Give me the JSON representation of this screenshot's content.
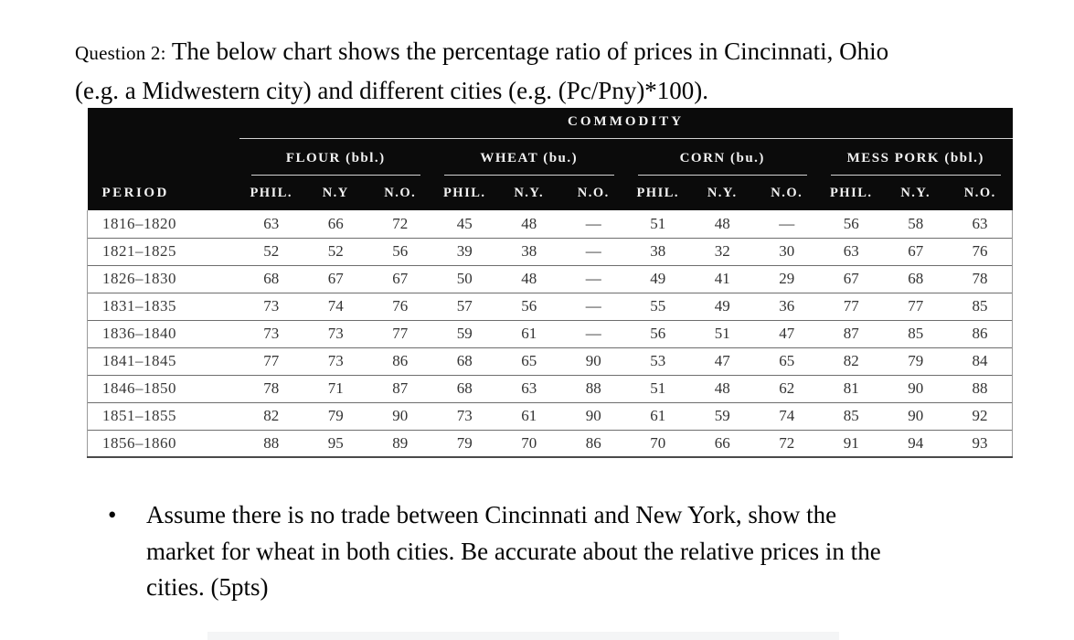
{
  "question": {
    "label": "Question 2:",
    "line1": "The below chart shows the percentage ratio of prices in Cincinnati, Ohio",
    "line2": "(e.g. a Midwestern city) and different cities (e.g. (Pc/Pny)*100)."
  },
  "table": {
    "commodity_header": "COMMODITY",
    "period_header": "PERIOD",
    "groups": [
      {
        "label": "FLOUR (bbl.)",
        "columns": [
          "PHIL.",
          "N.Y",
          "N.O."
        ]
      },
      {
        "label": "WHEAT (bu.)",
        "columns": [
          "PHIL.",
          "N.Y.",
          "N.O."
        ]
      },
      {
        "label": "CORN (bu.)",
        "columns": [
          "PHIL.",
          "N.Y.",
          "N.O."
        ]
      },
      {
        "label": "MESS PORK (bbl.)",
        "columns": [
          "PHIL.",
          "N.Y.",
          "N.O."
        ]
      }
    ],
    "rows": [
      {
        "period": "1816–1820",
        "values": [
          "63",
          "66",
          "72",
          "45",
          "48",
          "—",
          "51",
          "48",
          "—",
          "56",
          "58",
          "63"
        ]
      },
      {
        "period": "1821–1825",
        "values": [
          "52",
          "52",
          "56",
          "39",
          "38",
          "—",
          "38",
          "32",
          "30",
          "63",
          "67",
          "76"
        ]
      },
      {
        "period": "1826–1830",
        "values": [
          "68",
          "67",
          "67",
          "50",
          "48",
          "—",
          "49",
          "41",
          "29",
          "67",
          "68",
          "78"
        ]
      },
      {
        "period": "1831–1835",
        "values": [
          "73",
          "74",
          "76",
          "57",
          "56",
          "—",
          "55",
          "49",
          "36",
          "77",
          "77",
          "85"
        ]
      },
      {
        "period": "1836–1840",
        "values": [
          "73",
          "73",
          "77",
          "59",
          "61",
          "—",
          "56",
          "51",
          "47",
          "87",
          "85",
          "86"
        ]
      },
      {
        "period": "1841–1845",
        "values": [
          "77",
          "73",
          "86",
          "68",
          "65",
          "90",
          "53",
          "47",
          "65",
          "82",
          "79",
          "84"
        ]
      },
      {
        "period": "1846–1850",
        "values": [
          "78",
          "71",
          "87",
          "68",
          "63",
          "88",
          "51",
          "48",
          "62",
          "81",
          "90",
          "88"
        ]
      },
      {
        "period": "1851–1855",
        "values": [
          "82",
          "79",
          "90",
          "73",
          "61",
          "90",
          "61",
          "59",
          "74",
          "85",
          "90",
          "92"
        ]
      },
      {
        "period": "1856–1860",
        "values": [
          "88",
          "95",
          "89",
          "79",
          "70",
          "86",
          "70",
          "66",
          "72",
          "91",
          "94",
          "93"
        ]
      }
    ]
  },
  "bullet": {
    "marker": "•",
    "lines": [
      "Assume there is no trade between Cincinnati and New York, show the",
      "market for wheat in both cities. Be accurate about the relative prices in the",
      "cities. (5pts)"
    ]
  },
  "colors": {
    "header_background": "#0b0b0b",
    "header_text": "#f2f2f2",
    "header_rule": "#d2d2d2",
    "row_separator": "#6e6e6e",
    "body_text": "#050505",
    "cell_text": "#333333"
  }
}
